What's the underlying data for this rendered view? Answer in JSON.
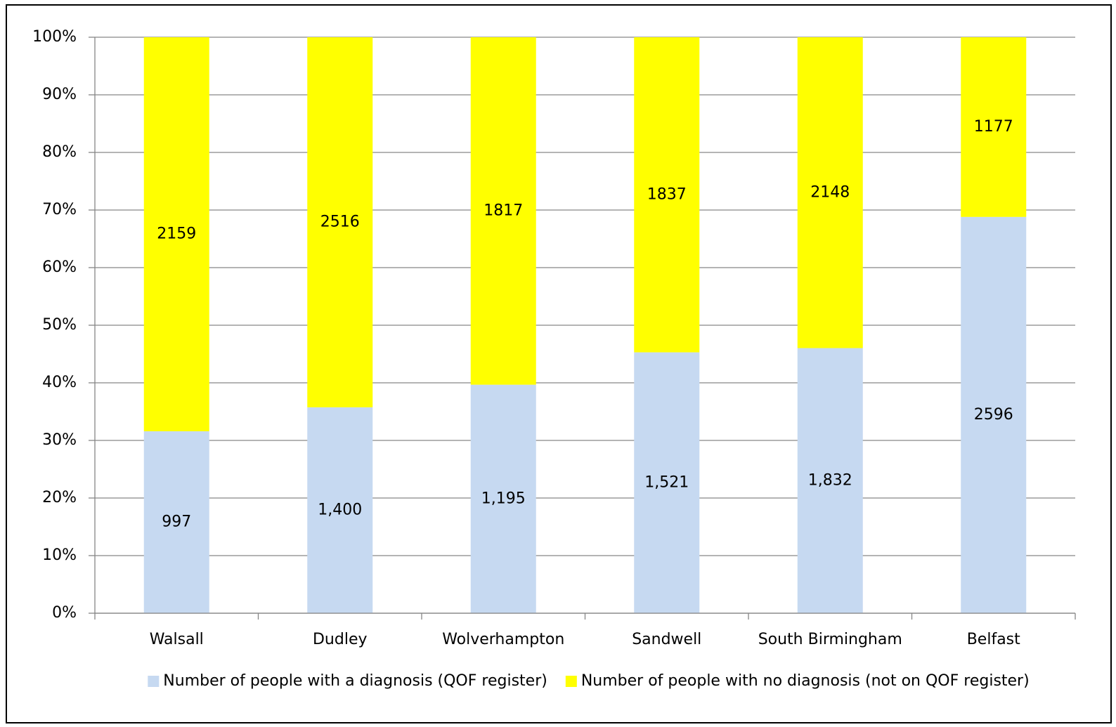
{
  "chart_data": {
    "type": "bar",
    "stacking": "percent",
    "categories": [
      "Walsall",
      "Dudley",
      "Wolverhampton",
      "Sandwell",
      "South Birmingham",
      "Belfast"
    ],
    "series": [
      {
        "name": "Number of people with a diagnosis (QOF register)",
        "color": "#c6d9f1",
        "values": [
          997,
          1400,
          1195,
          1521,
          1832,
          2596
        ],
        "value_labels": [
          "997",
          "1,400",
          "1,195",
          "1,521",
          "1,832",
          "2596"
        ]
      },
      {
        "name": "Number of people with no diagnosis (not on QOF register)",
        "color": "#ffff00",
        "values": [
          2159,
          2516,
          1817,
          1837,
          2148,
          1177
        ]
      }
    ],
    "ylim": [
      0,
      100
    ],
    "yticks": [
      {
        "value": 0,
        "label": "0%"
      },
      {
        "value": 10,
        "label": "10%"
      },
      {
        "value": 20,
        "label": "20%"
      },
      {
        "value": 30,
        "label": "30%"
      },
      {
        "value": 40,
        "label": "40%"
      },
      {
        "value": 50,
        "label": "50%"
      },
      {
        "value": 60,
        "label": "60%"
      },
      {
        "value": 70,
        "label": "70%"
      },
      {
        "value": 80,
        "label": "80%"
      },
      {
        "value": 90,
        "label": "90%"
      },
      {
        "value": 100,
        "label": "100%"
      }
    ],
    "grid": true,
    "legend": "bottom"
  }
}
